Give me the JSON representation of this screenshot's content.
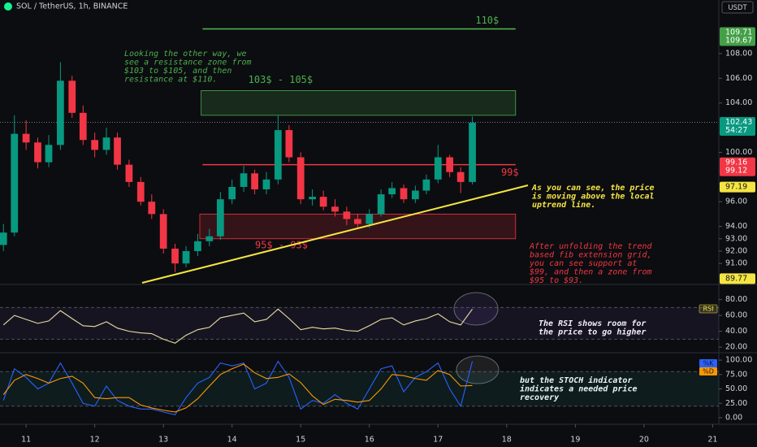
{
  "chart_data": {
    "type": "candlestick",
    "title": "SOL / TetherUS, 1h, BINANCE",
    "currency": "USDT",
    "xlim": [
      10.62,
      21.09
    ],
    "xticks": [
      11,
      12,
      13,
      14,
      15,
      16,
      17,
      18,
      19,
      20,
      21
    ],
    "ylim": [
      89.43,
      112.34
    ],
    "yticks": [
      {
        "value": 91,
        "label": "91.00"
      },
      {
        "value": 92,
        "label": "92.00"
      },
      {
        "value": 93,
        "label": "93.00"
      },
      {
        "value": 94,
        "label": "94.00"
      },
      {
        "value": 96,
        "label": "96.00"
      },
      {
        "value": 100,
        "label": "100.00"
      },
      {
        "value": 104,
        "label": "104.00"
      },
      {
        "value": 106,
        "label": "106.00"
      },
      {
        "value": 108,
        "label": "108.00"
      }
    ],
    "up_color": "#089981",
    "down_color": "#f23645",
    "x": [
      10.67,
      10.83,
      11.0,
      11.17,
      11.33,
      11.5,
      11.67,
      11.83,
      12.0,
      12.17,
      12.33,
      12.5,
      12.67,
      12.83,
      13.0,
      13.17,
      13.33,
      13.5,
      13.67,
      13.83,
      14.0,
      14.17,
      14.33,
      14.5,
      14.67,
      14.83,
      15.0,
      15.17,
      15.33,
      15.5,
      15.67,
      15.83,
      16.0,
      16.17,
      16.33,
      16.5,
      16.67,
      16.83,
      17.0,
      17.17,
      17.33,
      17.5
    ],
    "open": [
      92.5,
      93.5,
      101.5,
      100.8,
      99.2,
      100.6,
      105.8,
      103.2,
      101.0,
      100.2,
      101.2,
      99.0,
      97.6,
      96.0,
      95.0,
      92.2,
      91.0,
      92.0,
      92.8,
      93.2,
      96.2,
      97.2,
      98.3,
      97.0,
      97.8,
      101.8,
      99.6,
      96.2,
      96.4,
      95.6,
      95.2,
      94.6,
      94.2,
      95.0,
      96.6,
      97.1,
      96.2,
      96.9,
      97.8,
      99.6,
      98.4,
      97.6
    ],
    "high": [
      94.2,
      103.0,
      102.6,
      101.2,
      101.4,
      107.3,
      106.2,
      103.8,
      101.6,
      102.0,
      101.6,
      99.4,
      98.0,
      96.6,
      95.4,
      92.6,
      92.4,
      93.4,
      93.8,
      96.8,
      97.8,
      98.9,
      98.6,
      98.4,
      103.0,
      102.2,
      100.0,
      97.0,
      96.9,
      96.2,
      95.6,
      95.0,
      95.4,
      97.0,
      97.6,
      97.4,
      97.3,
      98.2,
      100.6,
      99.8,
      98.8,
      102.9
    ],
    "low": [
      92.0,
      93.2,
      100.2,
      98.7,
      98.8,
      100.2,
      102.8,
      100.6,
      99.6,
      99.8,
      98.6,
      97.2,
      95.7,
      94.6,
      91.8,
      90.3,
      90.7,
      91.6,
      92.4,
      92.9,
      95.8,
      96.8,
      96.6,
      96.6,
      97.4,
      99.2,
      95.8,
      95.7,
      95.3,
      94.8,
      94.1,
      93.8,
      93.9,
      94.8,
      96.3,
      95.9,
      95.9,
      96.6,
      97.5,
      98.0,
      96.7,
      97.4
    ],
    "close": [
      93.5,
      101.5,
      100.8,
      99.2,
      100.6,
      105.8,
      103.2,
      101.0,
      100.2,
      101.2,
      99.0,
      97.6,
      96.0,
      95.0,
      92.2,
      91.0,
      92.0,
      92.8,
      93.2,
      96.2,
      97.2,
      98.3,
      97.0,
      97.8,
      101.8,
      99.6,
      96.2,
      96.4,
      95.6,
      95.2,
      94.6,
      94.2,
      95.0,
      96.6,
      97.1,
      96.2,
      96.9,
      97.8,
      99.6,
      98.4,
      97.6,
      102.4
    ],
    "price_tags": [
      {
        "value": 109.71,
        "labels": [
          "109.71",
          "109.67"
        ],
        "color": "#43a047"
      },
      {
        "value": 102.43,
        "labels": [
          "102.43",
          "54:27"
        ],
        "color": "#089981"
      },
      {
        "value": 99.16,
        "labels": [
          "99.16",
          "99.12"
        ],
        "color": "#f23645"
      },
      {
        "value": 97.19,
        "labels": [
          "97.19"
        ],
        "color": "#f5e542"
      },
      {
        "value": 89.77,
        "labels": [
          "89.77"
        ],
        "color": "#f5e542"
      }
    ],
    "lines": [
      {
        "value": 110,
        "x": [
          13.57,
          18.13
        ],
        "color": "#4caf50",
        "label": "110$"
      },
      {
        "value": 99,
        "x": [
          13.57,
          18.13
        ],
        "color": "#f23645",
        "label": "99$"
      }
    ],
    "zones": [
      {
        "from": 103,
        "to": 105,
        "x": [
          13.55,
          18.13
        ],
        "color": "#4caf50",
        "label": "103$ - 105$"
      },
      {
        "from": 93,
        "to": 95,
        "x": [
          13.53,
          18.13
        ],
        "color": "#f23645",
        "label": "95$ - 93$"
      }
    ],
    "trendline": {
      "x": [
        12.69,
        18.31
      ],
      "y": [
        89.43,
        97.33
      ],
      "color": "#f5e542"
    },
    "annotations": [
      {
        "lines": [
          "Looking the other way, we",
          "see a resistance zone from",
          "$103 to $105, and then",
          "resistance at $110."
        ],
        "color": "#4caf50"
      },
      {
        "lines": [
          "As you can see, the price",
          "is moving above the local",
          "uptrend line."
        ],
        "color": "#f5e542"
      },
      {
        "lines": [
          "After unfolding the trend",
          "based fib extension grid,",
          "you can see support at",
          "$99, and then a zone from",
          "$95 to $93."
        ],
        "color": "#f23645"
      },
      {
        "lines": [
          "The RSI shows room for",
          "the price to go higher"
        ],
        "color": "#ffffff"
      },
      {
        "lines": [
          "but the STOCH indicator",
          "indicates a needed price",
          "recovery"
        ],
        "color": "#ffffff"
      }
    ],
    "indicators": [
      {
        "ylim": [
          15,
          97
        ],
        "yticks": [
          {
            "value": 20,
            "label": "20.00"
          },
          {
            "value": 40,
            "label": "40.00"
          },
          {
            "value": 60,
            "label": "60.00"
          },
          {
            "value": 80,
            "label": "80.00"
          }
        ],
        "band": [
          30,
          70
        ],
        "band_color": "#7e57c2",
        "series": [
          {
            "name": "RSI",
            "color": "#e8dfa0",
            "values": [
              48,
              60,
              55,
              50,
              53,
              66,
              56,
              47,
              46,
              52,
              44,
              40,
              38,
              37,
              30,
              25,
              35,
              42,
              45,
              57,
              60,
              63,
              52,
              55,
              68,
              56,
              42,
              45,
              43,
              44,
              41,
              40,
              47,
              55,
              57,
              48,
              53,
              56,
              62,
              52,
              48,
              68
            ]
          }
        ]
      },
      {
        "ylim": [
          -8.5,
          110
        ],
        "yticks": [
          {
            "value": 0,
            "label": "0.00"
          },
          {
            "value": 25,
            "label": "25.00"
          },
          {
            "value": 50,
            "label": "50.00"
          },
          {
            "value": 75,
            "label": "75.00"
          },
          {
            "value": 100,
            "label": "100.00"
          }
        ],
        "band": [
          20,
          80
        ],
        "band_color": "#26a69a",
        "series": [
          {
            "name": "%K",
            "color": "#2962ff",
            "values": [
              30,
              85,
              70,
              50,
              60,
              95,
              60,
              25,
              20,
              55,
              30,
              20,
              15,
              15,
              10,
              5,
              35,
              60,
              70,
              95,
              90,
              95,
              50,
              60,
              98,
              70,
              15,
              30,
              25,
              40,
              25,
              15,
              50,
              85,
              90,
              45,
              70,
              80,
              95,
              50,
              20,
              98
            ]
          },
          {
            "name": "%D",
            "color": "#ff9800",
            "values": [
              40,
              65,
              75,
              68,
              60,
              68,
              72,
              60,
              35,
              33,
              35,
              35,
              22,
              17,
              13,
              10,
              17,
              33,
              55,
              75,
              85,
              93,
              78,
              68,
              70,
              76,
              61,
              38,
              23,
              32,
              30,
              27,
              30,
              50,
              75,
              73,
              68,
              65,
              82,
              75,
              55,
              56
            ]
          }
        ]
      }
    ]
  }
}
